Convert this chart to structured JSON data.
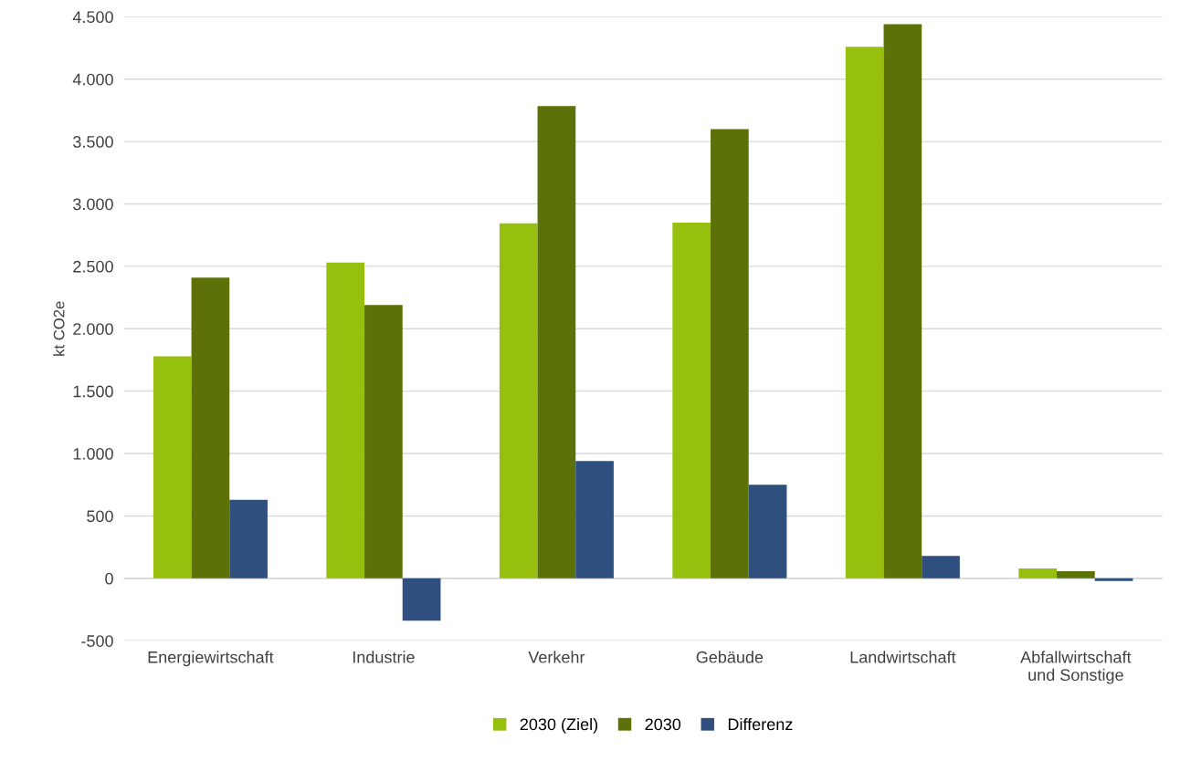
{
  "chart_data": {
    "type": "bar",
    "ylabel": "kt CO2e",
    "categories": [
      "Energiewirtschaft",
      "Industrie",
      "Verkehr",
      "Gebäude",
      "Landwirtschaft",
      "Abfallwirtschaft\nund Sonstige"
    ],
    "series": [
      {
        "name": "2030 (Ziel)",
        "color": "#97bf0d",
        "values": [
          1780,
          2530,
          2845,
          2850,
          4260,
          80
        ]
      },
      {
        "name": "2030",
        "color": "#5c7209",
        "values": [
          2410,
          2190,
          3785,
          3600,
          4440,
          58
        ]
      },
      {
        "name": "Differenz",
        "color": "#2f4f7f",
        "values": [
          630,
          -340,
          940,
          750,
          180,
          -22
        ]
      }
    ],
    "ylim": [
      -500,
      4500
    ],
    "yticks": [
      {
        "value": -500,
        "label": "-500"
      },
      {
        "value": 0,
        "label": "0"
      },
      {
        "value": 500,
        "label": "500"
      },
      {
        "value": 1000,
        "label": "1.000"
      },
      {
        "value": 1500,
        "label": "1.500"
      },
      {
        "value": 2000,
        "label": "2.000"
      },
      {
        "value": 2500,
        "label": "2.500"
      },
      {
        "value": 3000,
        "label": "3.000"
      },
      {
        "value": 3500,
        "label": "3.500"
      },
      {
        "value": 4000,
        "label": "4.000"
      },
      {
        "value": 4500,
        "label": "4.500"
      }
    ],
    "grid": "y",
    "legend": "bottom"
  }
}
